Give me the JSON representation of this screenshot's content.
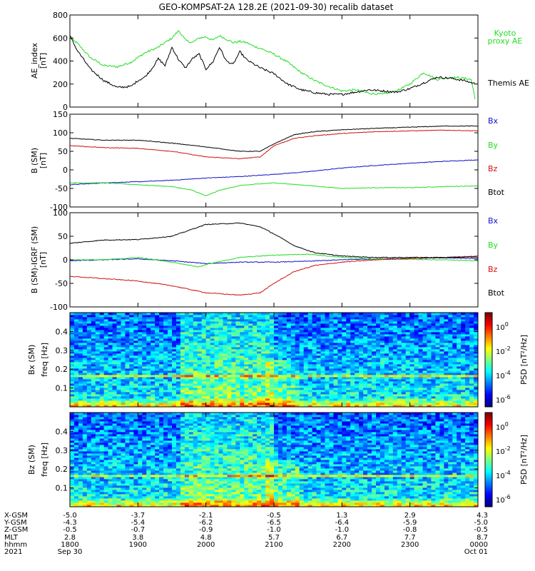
{
  "title": "GEO-KOMPSAT-2A 128.2E (2021-09-30) recalib dataset",
  "colors": {
    "black": "#000000",
    "green": "#22dd22",
    "blue": "#1010c8",
    "red": "#d01010"
  },
  "chart_data": [
    {
      "type": "line",
      "panel": "ae",
      "ylabel": "AE_index [nT]",
      "ylim": [
        0,
        800
      ],
      "yticks": [
        0,
        200,
        400,
        600,
        800
      ],
      "xlim": [
        18.0,
        24.0
      ],
      "series": [
        {
          "name": "Kyoto proxy AE",
          "color": "#22dd22",
          "x": [
            18.0,
            18.1,
            18.3,
            18.5,
            18.7,
            18.9,
            19.1,
            19.3,
            19.5,
            19.6,
            19.7,
            19.8,
            19.9,
            20.0,
            20.1,
            20.2,
            20.3,
            20.4,
            20.5,
            20.6,
            20.7,
            20.8,
            21.0,
            21.2,
            21.4,
            21.6,
            21.8,
            22.0,
            22.2,
            22.4,
            22.6,
            22.8,
            23.0,
            23.2,
            23.4,
            23.6,
            23.8,
            23.9,
            23.97
          ],
          "y": [
            600,
            560,
            430,
            360,
            350,
            390,
            470,
            520,
            600,
            665,
            580,
            560,
            600,
            610,
            580,
            620,
            590,
            560,
            570,
            560,
            530,
            510,
            460,
            390,
            300,
            230,
            180,
            140,
            150,
            120,
            110,
            140,
            200,
            300,
            240,
            260,
            250,
            240,
            40
          ]
        },
        {
          "name": "Themis AE",
          "color": "#000000",
          "x": [
            18.0,
            18.1,
            18.3,
            18.5,
            18.7,
            18.9,
            19.0,
            19.1,
            19.2,
            19.3,
            19.4,
            19.5,
            19.6,
            19.7,
            19.8,
            19.9,
            20.0,
            20.1,
            20.2,
            20.3,
            20.4,
            20.5,
            20.6,
            20.8,
            21.0,
            21.2,
            21.4,
            21.6,
            21.8,
            22.0,
            22.2,
            22.4,
            22.6,
            22.8,
            23.0,
            23.2,
            23.4,
            23.6,
            23.8,
            23.97
          ],
          "y": [
            620,
            500,
            330,
            230,
            170,
            180,
            230,
            260,
            330,
            420,
            360,
            520,
            410,
            340,
            420,
            460,
            330,
            390,
            520,
            400,
            370,
            480,
            410,
            340,
            290,
            200,
            150,
            125,
            110,
            110,
            130,
            150,
            140,
            130,
            160,
            210,
            260,
            250,
            230,
            200
          ]
        }
      ]
    },
    {
      "type": "line",
      "panel": "b_sm",
      "ylabel": "B (SM) [nT]",
      "ylim": [
        -100,
        150
      ],
      "yticks": [
        -100,
        -50,
        0,
        50,
        100,
        150
      ],
      "xlim": [
        18.0,
        24.0
      ],
      "series": [
        {
          "name": "Bx",
          "color": "#1010c8",
          "x": [
            18.0,
            18.5,
            19.0,
            19.5,
            20.0,
            20.5,
            21.0,
            21.5,
            22.0,
            22.5,
            23.0,
            23.5,
            24.0
          ],
          "y": [
            -40,
            -35,
            -32,
            -28,
            -22,
            -18,
            -12,
            -5,
            5,
            12,
            18,
            23,
            27
          ]
        },
        {
          "name": "By",
          "color": "#22dd22",
          "x": [
            18.0,
            18.5,
            19.0,
            19.5,
            19.8,
            20.0,
            20.2,
            20.5,
            21.0,
            21.5,
            22.0,
            22.5,
            23.0,
            23.5,
            24.0
          ],
          "y": [
            -35,
            -35,
            -40,
            -45,
            -55,
            -70,
            -55,
            -42,
            -35,
            -42,
            -50,
            -48,
            -48,
            -45,
            -43
          ]
        },
        {
          "name": "Bz",
          "color": "#d01010",
          "x": [
            18.0,
            18.5,
            19.0,
            19.5,
            20.0,
            20.5,
            20.8,
            21.0,
            21.3,
            21.6,
            22.0,
            22.5,
            23.0,
            23.5,
            24.0
          ],
          "y": [
            65,
            60,
            58,
            50,
            35,
            30,
            35,
            65,
            85,
            92,
            98,
            103,
            105,
            107,
            105
          ]
        },
        {
          "name": "Btot",
          "color": "#000000",
          "x": [
            18.0,
            18.5,
            19.0,
            19.5,
            20.0,
            20.5,
            20.8,
            21.0,
            21.3,
            21.6,
            22.0,
            22.5,
            23.0,
            23.5,
            24.0
          ],
          "y": [
            85,
            80,
            80,
            72,
            62,
            50,
            50,
            70,
            95,
            103,
            108,
            112,
            115,
            118,
            118
          ]
        }
      ]
    },
    {
      "type": "line",
      "panel": "b_sm_igrf",
      "ylabel": "B (SM)-IGRF (SM) [nT]",
      "ylim": [
        -100,
        100
      ],
      "yticks": [
        -100,
        -50,
        0,
        50,
        100
      ],
      "xlim": [
        18.0,
        24.0
      ],
      "series": [
        {
          "name": "Bx",
          "color": "#1010c8",
          "x": [
            18.0,
            18.5,
            19.0,
            19.5,
            20.0,
            20.5,
            21.0,
            21.5,
            22.0,
            22.5,
            23.0,
            23.5,
            24.0
          ],
          "y": [
            -2,
            0,
            2,
            -2,
            -8,
            -5,
            -5,
            -3,
            0,
            2,
            3,
            4,
            3
          ]
        },
        {
          "name": "By",
          "color": "#22dd22",
          "x": [
            18.0,
            18.5,
            19.0,
            19.5,
            19.9,
            20.0,
            20.5,
            21.0,
            21.5,
            22.0,
            22.5,
            23.0,
            23.5,
            24.0
          ],
          "y": [
            0,
            0,
            5,
            -5,
            -15,
            -10,
            5,
            10,
            12,
            5,
            2,
            1,
            0,
            -2
          ]
        },
        {
          "name": "Bz",
          "color": "#d01010",
          "x": [
            18.0,
            18.5,
            19.0,
            19.5,
            20.0,
            20.5,
            20.8,
            21.0,
            21.3,
            21.6,
            22.0,
            22.5,
            23.0,
            23.5,
            24.0
          ],
          "y": [
            -35,
            -40,
            -45,
            -55,
            -70,
            -75,
            -70,
            -50,
            -25,
            -12,
            -5,
            0,
            3,
            5,
            8
          ]
        },
        {
          "name": "Btot",
          "color": "#000000",
          "x": [
            18.0,
            18.5,
            19.0,
            19.5,
            19.8,
            20.0,
            20.5,
            20.8,
            21.0,
            21.3,
            21.6,
            22.0,
            22.5,
            23.0,
            23.5,
            24.0
          ],
          "y": [
            35,
            42,
            43,
            50,
            65,
            75,
            78,
            70,
            55,
            30,
            15,
            8,
            5,
            5,
            5,
            6
          ]
        }
      ]
    },
    {
      "type": "heatmap",
      "panel": "bx_spec",
      "ylabel": "Bx (SM) freq [Hz]",
      "ylim": [
        0.0,
        0.5
      ],
      "yticks": [
        0.1,
        0.2,
        0.3,
        0.4
      ],
      "xlim": [
        18.0,
        24.0
      ],
      "zlabel": "PSD [nT^2/Hz]",
      "zscale": "log",
      "zticks": [
        "10^0",
        "10^-2",
        "10^-4",
        "10^-6"
      ]
    },
    {
      "type": "heatmap",
      "panel": "bz_spec",
      "ylabel": "Bz (SM) freq [Hz]",
      "ylim": [
        0.0,
        0.5
      ],
      "yticks": [
        0.1,
        0.2,
        0.3,
        0.4
      ],
      "xlim": [
        18.0,
        24.0
      ],
      "zlabel": "PSD [nT^2/Hz]",
      "zscale": "log",
      "zticks": [
        "10^0",
        "10^-2",
        "10^-4",
        "10^-6"
      ]
    }
  ],
  "ephemeris": {
    "row_labels": [
      "X-GSM",
      "Y-GSM",
      "Z-GSM",
      "MLT",
      "hhmm",
      "2021"
    ],
    "columns": [
      {
        "x": 18.0,
        "values": [
          "-5.0",
          "-4.3",
          "-0.5",
          "2.8",
          "1800",
          "Sep 30"
        ]
      },
      {
        "x": 19.0,
        "values": [
          "-3.7",
          "-5.4",
          "-0.7",
          "3.8",
          "1900",
          ""
        ]
      },
      {
        "x": 20.0,
        "values": [
          "-2.1",
          "-6.2",
          "-0.9",
          "4.8",
          "2000",
          ""
        ]
      },
      {
        "x": 21.0,
        "values": [
          "-0.5",
          "-6.5",
          "-1.0",
          "5.7",
          "2100",
          ""
        ]
      },
      {
        "x": 22.0,
        "values": [
          "1.3",
          "-6.4",
          "-1.0",
          "6.7",
          "2200",
          ""
        ]
      },
      {
        "x": 23.0,
        "values": [
          "2.9",
          "-5.9",
          "-0.8",
          "7.7",
          "2300",
          ""
        ]
      },
      {
        "x": 24.0,
        "values": [
          "4.3",
          "-5.0",
          "-0.5",
          "8.7",
          "0000",
          "Oct 01"
        ]
      }
    ]
  }
}
